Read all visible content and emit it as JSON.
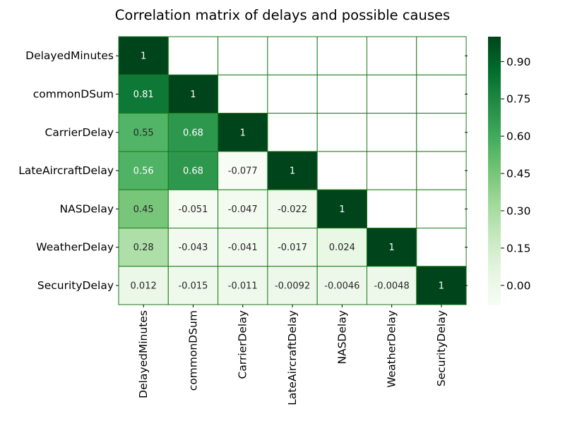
{
  "chart_data": {
    "type": "heatmap",
    "title": "Correlation matrix of delays and possible causes",
    "xlabel": "",
    "ylabel": "",
    "rows": [
      "DelayedMinutes",
      "commonDSum",
      "CarrierDelay",
      "LateAircraftDelay",
      "NASDelay",
      "WeatherDelay",
      "SecurityDelay"
    ],
    "columns": [
      "DelayedMinutes",
      "commonDSum",
      "CarrierDelay",
      "LateAircraftDelay",
      "NASDelay",
      "WeatherDelay",
      "SecurityDelay"
    ],
    "values": [
      [
        1,
        null,
        null,
        null,
        null,
        null,
        null
      ],
      [
        0.81,
        1,
        null,
        null,
        null,
        null,
        null
      ],
      [
        0.55,
        0.68,
        1,
        null,
        null,
        null,
        null
      ],
      [
        0.56,
        0.68,
        -0.077,
        1,
        null,
        null,
        null
      ],
      [
        0.45,
        -0.051,
        -0.047,
        -0.022,
        1,
        null,
        null
      ],
      [
        0.28,
        -0.043,
        -0.041,
        -0.017,
        0.024,
        1,
        null
      ],
      [
        0.012,
        -0.015,
        -0.011,
        -0.0092,
        -0.0046,
        -0.0048,
        1
      ]
    ],
    "annotations": [
      [
        "1",
        null,
        null,
        null,
        null,
        null,
        null
      ],
      [
        "0.81",
        "1",
        null,
        null,
        null,
        null,
        null
      ],
      [
        "0.55",
        "0.68",
        "1",
        null,
        null,
        null,
        null
      ],
      [
        "0.56",
        "0.68",
        "-0.077",
        "1",
        null,
        null,
        null
      ],
      [
        "0.45",
        "-0.051",
        "-0.047",
        "-0.022",
        "1",
        null,
        null
      ],
      [
        "0.28",
        "-0.043",
        "-0.041",
        "-0.017",
        "0.024",
        "1",
        null
      ],
      [
        "0.012",
        "-0.015",
        "-0.011",
        "-0.0092",
        "-0.0046",
        "-0.0048",
        "1"
      ]
    ],
    "mask": "upper-triangle",
    "colormap": "Greens",
    "vmin": -0.077,
    "vmax": 1,
    "colorbar_ticks": [
      "0.00",
      "0.15",
      "0.30",
      "0.45",
      "0.60",
      "0.75",
      "0.90"
    ],
    "colorbar_tick_values": [
      0,
      0.15,
      0.3,
      0.45,
      0.6,
      0.75,
      0.9
    ],
    "cell_border_color": "#1a7a1a",
    "grid": true
  }
}
